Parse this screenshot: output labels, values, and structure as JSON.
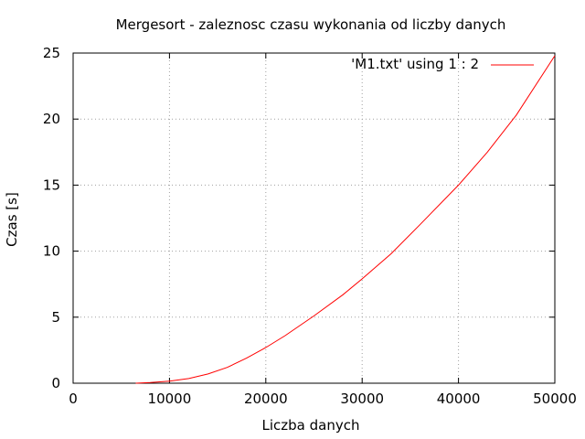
{
  "chart_data": {
    "type": "line",
    "title": "Mergesort - zaleznosc czasu wykonania od liczby danych",
    "xlabel": "Liczba danych",
    "ylabel": "Czas [s]",
    "xlim": [
      0,
      50000
    ],
    "ylim": [
      0,
      25
    ],
    "x_ticks": [
      0,
      10000,
      20000,
      30000,
      40000,
      50000
    ],
    "y_ticks": [
      0,
      5,
      10,
      15,
      20,
      25
    ],
    "grid": true,
    "legend_position": "top-right",
    "series": [
      {
        "name": "'M1.txt' using 1 : 2",
        "color": "#ff0000",
        "x": [
          6500,
          8000,
          10000,
          12000,
          14000,
          16000,
          18000,
          20000,
          22000,
          25000,
          28000,
          30000,
          33000,
          36000,
          40000,
          43000,
          46000,
          50000
        ],
        "y": [
          0.0,
          0.05,
          0.15,
          0.35,
          0.7,
          1.2,
          1.9,
          2.7,
          3.6,
          5.1,
          6.7,
          7.9,
          9.8,
          12.0,
          15.0,
          17.5,
          20.3,
          24.8
        ]
      }
    ]
  },
  "colors": {
    "grid": "#a0a0a0",
    "axis": "#000000",
    "series": "#ff0000"
  }
}
